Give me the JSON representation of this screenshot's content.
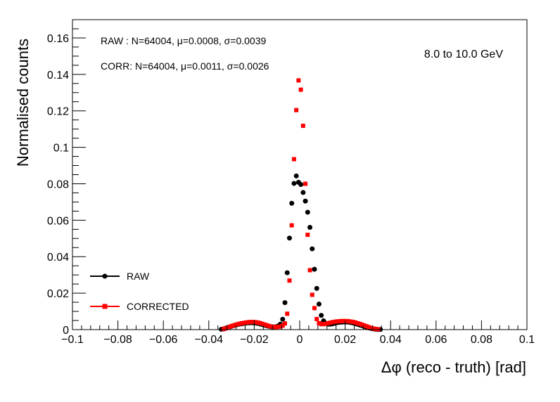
{
  "chart_data": {
    "type": "scatter",
    "title": "",
    "xlabel": "Δφ  (reco - truth)  [rad]",
    "ylabel": "Normalised counts",
    "xlim": [
      -0.1,
      0.1
    ],
    "ylim": [
      0,
      0.17
    ],
    "x_ticks": [
      -0.1,
      -0.08,
      -0.06,
      -0.04,
      -0.02,
      0,
      0.02,
      0.04,
      0.06,
      0.08,
      0.1
    ],
    "x_tick_labels": [
      "−0.1",
      "−0.08",
      "−0.06",
      "−0.04",
      "−0.02",
      "0",
      "0.02",
      "0.04",
      "0.06",
      "0.08",
      "0.1"
    ],
    "y_ticks": [
      0,
      0.02,
      0.04,
      0.06,
      0.08,
      0.1,
      0.12,
      0.14,
      0.16
    ],
    "y_tick_labels": [
      "0",
      "0.02",
      "0.04",
      "0.06",
      "0.08",
      "0.1",
      "0.12",
      "0.14",
      "0.16"
    ],
    "grid": false,
    "legend_position": "bottom-left",
    "annotations": {
      "raw_stats": "RAW : N=64004, μ=0.0008, σ=0.0039",
      "corr_stats": "CORR: N=64004, μ=0.0011, σ=0.0026",
      "energy_range": "8.0 to 10.0 GeV"
    },
    "series": [
      {
        "name": "RAW",
        "color": "#000000",
        "marker": "circle",
        "points": [
          [
            -0.0345,
            0.0002
          ],
          [
            -0.0335,
            0.0004
          ],
          [
            -0.0325,
            0.0008
          ],
          [
            -0.0315,
            0.0012
          ],
          [
            -0.0305,
            0.0016
          ],
          [
            -0.0295,
            0.002
          ],
          [
            -0.0285,
            0.0024
          ],
          [
            -0.0275,
            0.0027
          ],
          [
            -0.0265,
            0.003
          ],
          [
            -0.0255,
            0.0032
          ],
          [
            -0.0245,
            0.0034
          ],
          [
            -0.0235,
            0.0036
          ],
          [
            -0.0225,
            0.0037
          ],
          [
            -0.0215,
            0.0038
          ],
          [
            -0.0205,
            0.0037
          ],
          [
            -0.0195,
            0.0036
          ],
          [
            -0.0185,
            0.0034
          ],
          [
            -0.0175,
            0.0031
          ],
          [
            -0.0165,
            0.0028
          ],
          [
            -0.0155,
            0.0024
          ],
          [
            -0.0145,
            0.0021
          ],
          [
            -0.0135,
            0.0018
          ],
          [
            -0.0125,
            0.0016
          ],
          [
            -0.0115,
            0.0015
          ],
          [
            -0.0105,
            0.0016
          ],
          [
            -0.0095,
            0.002
          ],
          [
            -0.0085,
            0.003
          ],
          [
            -0.0075,
            0.0057
          ],
          [
            -0.0065,
            0.0148
          ],
          [
            -0.0055,
            0.0312
          ],
          [
            -0.0045,
            0.0502
          ],
          [
            -0.0035,
            0.0693
          ],
          [
            -0.0025,
            0.0802
          ],
          [
            -0.0015,
            0.0843
          ],
          [
            -0.0005,
            0.0808
          ],
          [
            0.0005,
            0.0796
          ],
          [
            0.0015,
            0.0752
          ],
          [
            0.0025,
            0.0705
          ],
          [
            0.0035,
            0.0644
          ],
          [
            0.0045,
            0.0561
          ],
          [
            0.0055,
            0.0443
          ],
          [
            0.0065,
            0.0331
          ],
          [
            0.0075,
            0.0226
          ],
          [
            0.0085,
            0.014
          ],
          [
            0.0095,
            0.0078
          ],
          [
            0.0105,
            0.0048
          ],
          [
            0.0115,
            0.0035
          ],
          [
            0.0125,
            0.003
          ],
          [
            0.0135,
            0.003
          ],
          [
            0.0145,
            0.0032
          ],
          [
            0.0155,
            0.0035
          ],
          [
            0.0165,
            0.0038
          ],
          [
            0.0175,
            0.004
          ],
          [
            0.0185,
            0.0041
          ],
          [
            0.0195,
            0.0042
          ],
          [
            0.0205,
            0.0042
          ],
          [
            0.0215,
            0.0041
          ],
          [
            0.0225,
            0.0039
          ],
          [
            0.0235,
            0.0036
          ],
          [
            0.0245,
            0.0033
          ],
          [
            0.0255,
            0.0029
          ],
          [
            0.0265,
            0.0025
          ],
          [
            0.0275,
            0.0021
          ],
          [
            0.0285,
            0.0017
          ],
          [
            0.0295,
            0.0013
          ],
          [
            0.0305,
            0.0009
          ],
          [
            0.0315,
            0.0006
          ],
          [
            0.0325,
            0.0004
          ],
          [
            0.0335,
            0.0002
          ],
          [
            0.0345,
            0.0001
          ],
          [
            0.0355,
            0.0001
          ]
        ]
      },
      {
        "name": "CORRECTED",
        "color": "#ff0000",
        "marker": "square",
        "points": [
          [
            -0.0335,
            0.0003
          ],
          [
            -0.0325,
            0.0007
          ],
          [
            -0.0315,
            0.0012
          ],
          [
            -0.0305,
            0.0017
          ],
          [
            -0.0295,
            0.0021
          ],
          [
            -0.0285,
            0.0025
          ],
          [
            -0.0275,
            0.0029
          ],
          [
            -0.0265,
            0.0032
          ],
          [
            -0.0255,
            0.0035
          ],
          [
            -0.0245,
            0.0037
          ],
          [
            -0.0235,
            0.0039
          ],
          [
            -0.0225,
            0.0041
          ],
          [
            -0.0215,
            0.0042
          ],
          [
            -0.0205,
            0.0042
          ],
          [
            -0.0195,
            0.0041
          ],
          [
            -0.0185,
            0.0039
          ],
          [
            -0.0175,
            0.0036
          ],
          [
            -0.0165,
            0.0032
          ],
          [
            -0.0155,
            0.0028
          ],
          [
            -0.0145,
            0.0024
          ],
          [
            -0.0135,
            0.002
          ],
          [
            -0.0125,
            0.0017
          ],
          [
            -0.0115,
            0.0015
          ],
          [
            -0.0105,
            0.0014
          ],
          [
            -0.0095,
            0.0015
          ],
          [
            -0.0085,
            0.0017
          ],
          [
            -0.0075,
            0.0022
          ],
          [
            -0.0065,
            0.0034
          ],
          [
            -0.0055,
            0.0087
          ],
          [
            -0.0045,
            0.0269
          ],
          [
            -0.0035,
            0.0572
          ],
          [
            -0.0025,
            0.0935
          ],
          [
            -0.0015,
            0.1204
          ],
          [
            -0.0005,
            0.1367
          ],
          [
            0.0005,
            0.1316
          ],
          [
            0.0015,
            0.1118
          ],
          [
            0.0025,
            0.08
          ],
          [
            0.0035,
            0.052
          ],
          [
            0.0045,
            0.0326
          ],
          [
            0.0055,
            0.0191
          ],
          [
            0.0065,
            0.0118
          ],
          [
            0.0075,
            0.0058
          ],
          [
            0.0085,
            0.0035
          ],
          [
            0.0095,
            0.003
          ],
          [
            0.0105,
            0.003
          ],
          [
            0.0115,
            0.0032
          ],
          [
            0.0125,
            0.0035
          ],
          [
            0.0135,
            0.0038
          ],
          [
            0.0145,
            0.0041
          ],
          [
            0.0155,
            0.0043
          ],
          [
            0.0165,
            0.0045
          ],
          [
            0.0175,
            0.0046
          ],
          [
            0.0185,
            0.0047
          ],
          [
            0.0195,
            0.0047
          ],
          [
            0.0205,
            0.0047
          ],
          [
            0.0215,
            0.0046
          ],
          [
            0.0225,
            0.0044
          ],
          [
            0.0235,
            0.0042
          ],
          [
            0.0245,
            0.0039
          ],
          [
            0.0255,
            0.0035
          ],
          [
            0.0265,
            0.0031
          ],
          [
            0.0275,
            0.0027
          ],
          [
            0.0285,
            0.0022
          ],
          [
            0.0295,
            0.0018
          ],
          [
            0.0305,
            0.0013
          ],
          [
            0.0315,
            0.0009
          ],
          [
            0.0325,
            0.0006
          ],
          [
            0.0335,
            0.0003
          ],
          [
            0.0345,
            0.0002
          ]
        ]
      }
    ]
  }
}
